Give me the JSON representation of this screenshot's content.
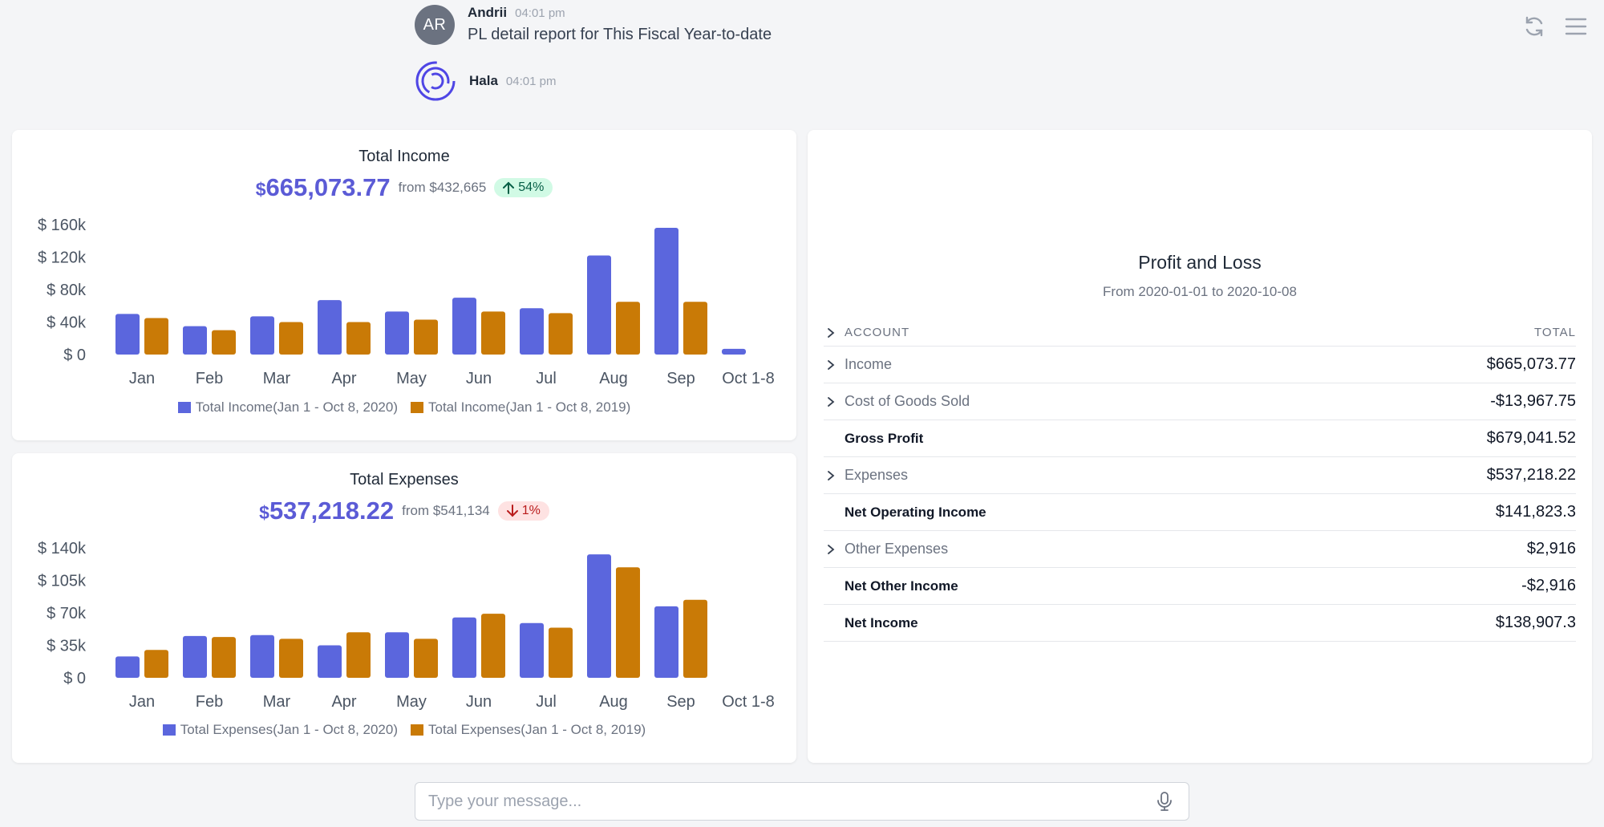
{
  "chat": {
    "messages": [
      {
        "initials": "AR",
        "name": "Andrii",
        "time": "04:01 pm",
        "text": "PL detail report for This Fiscal Year-to-date"
      },
      {
        "name": "Hala",
        "time": "04:01 pm"
      }
    ]
  },
  "top_icons": [
    "refresh-icon",
    "menu-icon"
  ],
  "colors": {
    "series_2020": "#5b66dd",
    "series_2019": "#c97a06",
    "accent": "#5b5bd6"
  },
  "income_card": {
    "title": "Total Income",
    "currency": "$",
    "amount": "665,073.77",
    "from": "from $432,665",
    "change": "54%",
    "direction": "up"
  },
  "expense_card": {
    "title": "Total Expenses",
    "currency": "$",
    "amount": "537,218.22",
    "from": "from $541,134",
    "change": "1%",
    "direction": "down"
  },
  "chart_data": [
    {
      "type": "bar",
      "title": "Total Income",
      "categories": [
        "Jan",
        "Feb",
        "Mar",
        "Apr",
        "May",
        "Jun",
        "Jul",
        "Aug",
        "Sep",
        "Oct 1-8"
      ],
      "yticks": [
        "$ 0",
        "$ 40k",
        "$ 80k",
        "$ 120k",
        "$ 160k"
      ],
      "ylim": [
        0,
        160000
      ],
      "series": [
        {
          "name": "Total Income(Jan 1 - Oct 8, 2020)",
          "color": "#5b66dd",
          "values": [
            50000,
            35000,
            47000,
            67000,
            53000,
            70000,
            57000,
            122000,
            156000,
            7000
          ]
        },
        {
          "name": "Total Income(Jan 1 - Oct 8, 2019)",
          "color": "#c97a06",
          "values": [
            45000,
            30000,
            40000,
            40000,
            43000,
            53000,
            51000,
            65000,
            65000,
            0
          ]
        }
      ],
      "legend": "bottom-center"
    },
    {
      "type": "bar",
      "title": "Total Expenses",
      "categories": [
        "Jan",
        "Feb",
        "Mar",
        "Apr",
        "May",
        "Jun",
        "Jul",
        "Aug",
        "Sep",
        "Oct 1-8"
      ],
      "yticks": [
        "$ 0",
        "$ 35k",
        "$ 70k",
        "$ 105k",
        "$ 140k"
      ],
      "ylim": [
        0,
        140000
      ],
      "series": [
        {
          "name": "Total Expenses(Jan 1 - Oct 8, 2020)",
          "color": "#5b66dd",
          "values": [
            23000,
            45000,
            46000,
            35000,
            49000,
            65000,
            59000,
            133000,
            77000,
            0
          ]
        },
        {
          "name": "Total Expenses(Jan 1 - Oct 8, 2019)",
          "color": "#c97a06",
          "values": [
            30000,
            44000,
            42000,
            49000,
            42000,
            69000,
            54000,
            119000,
            84000,
            0
          ]
        }
      ],
      "legend": "bottom-center"
    }
  ],
  "pl": {
    "title": "Profit and Loss",
    "subtitle": "From 2020-01-01 to 2020-10-08",
    "header": {
      "account": "ACCOUNT",
      "total": "TOTAL"
    },
    "rows": [
      {
        "label": "Income",
        "total": "$665,073.77",
        "expandable": true,
        "bold": false
      },
      {
        "label": "Cost of Goods Sold",
        "total": "-$13,967.75",
        "expandable": true,
        "bold": false
      },
      {
        "label": "Gross Profit",
        "total": "$679,041.52",
        "expandable": false,
        "bold": true
      },
      {
        "label": "Expenses",
        "total": "$537,218.22",
        "expandable": true,
        "bold": false
      },
      {
        "label": "Net Operating Income",
        "total": "$141,823.3",
        "expandable": false,
        "bold": true
      },
      {
        "label": "Other Expenses",
        "total": "$2,916",
        "expandable": true,
        "bold": false
      },
      {
        "label": "Net Other Income",
        "total": "-$2,916",
        "expandable": false,
        "bold": true
      },
      {
        "label": "Net Income",
        "total": "$138,907.3",
        "expandable": false,
        "bold": true
      }
    ]
  },
  "composer": {
    "placeholder": "Type your message..."
  }
}
